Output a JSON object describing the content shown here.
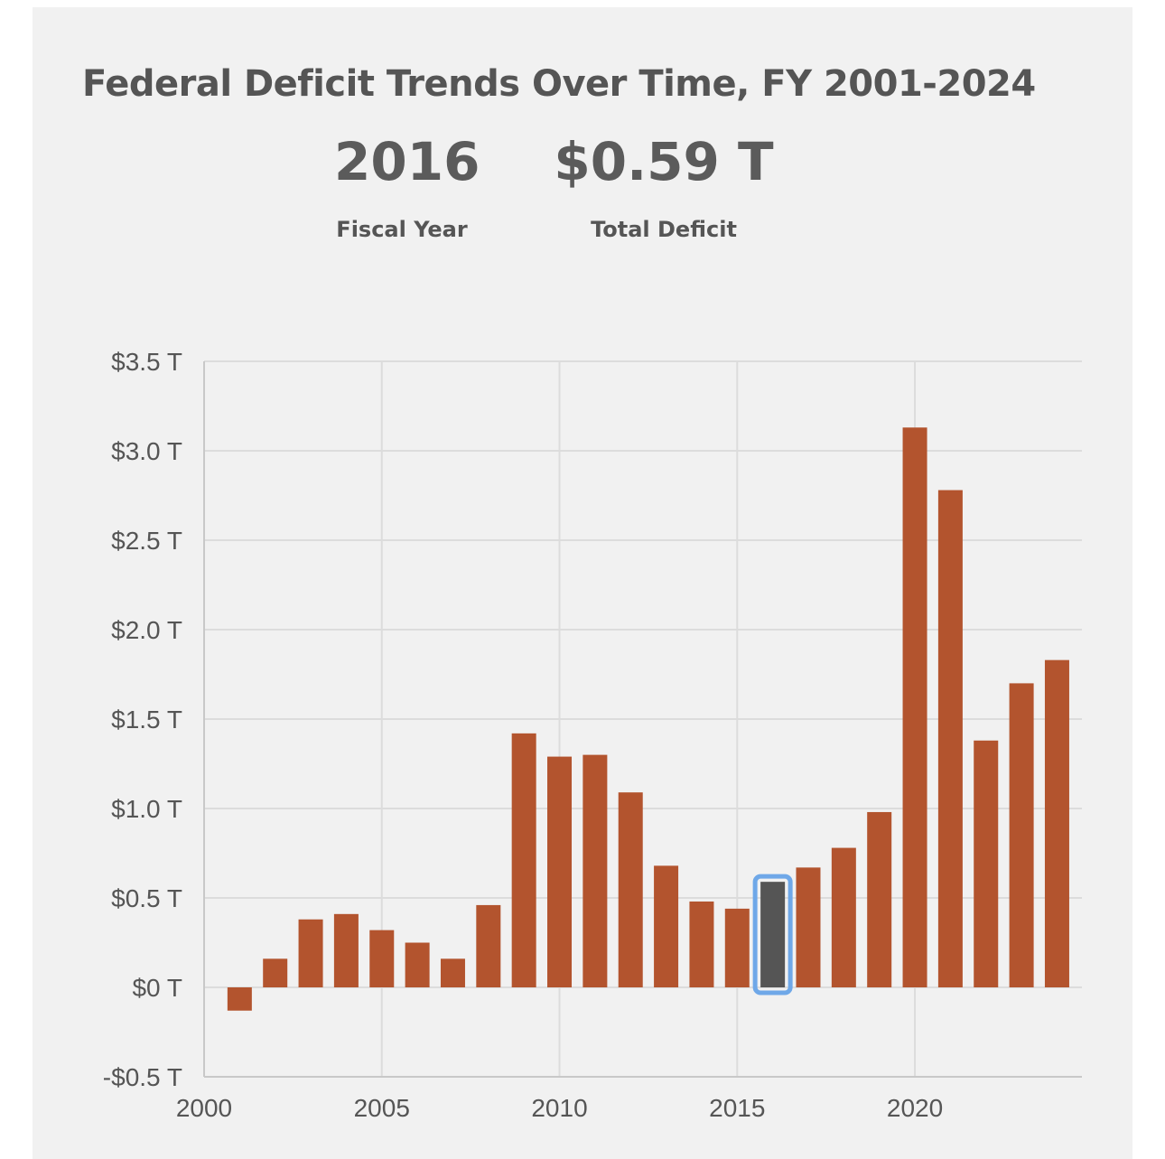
{
  "chart_data": {
    "type": "bar",
    "title": "Federal Deficit Trends Over Time, FY 2001-2024",
    "selected": {
      "year": "2016",
      "year_label": "Fiscal Year",
      "value": "$0.59 T",
      "value_label": "Total Deficit"
    },
    "x": [
      2001,
      2002,
      2003,
      2004,
      2005,
      2006,
      2007,
      2008,
      2009,
      2010,
      2011,
      2012,
      2013,
      2014,
      2015,
      2016,
      2017,
      2018,
      2019,
      2020,
      2021,
      2022,
      2023,
      2024
    ],
    "values": [
      -0.13,
      0.16,
      0.38,
      0.41,
      0.32,
      0.25,
      0.16,
      0.46,
      1.42,
      1.29,
      1.3,
      1.09,
      0.68,
      0.48,
      0.44,
      0.59,
      0.67,
      0.78,
      0.98,
      3.13,
      2.78,
      1.38,
      1.7,
      1.83
    ],
    "highlight_index": 15,
    "ylim": [
      -0.5,
      3.5
    ],
    "y_ticks": [
      -0.5,
      0,
      0.5,
      1.0,
      1.5,
      2.0,
      2.5,
      3.0,
      3.5
    ],
    "y_tick_labels": [
      "-$0.5 T",
      "$0 T",
      "$0.5 T",
      "$1.0 T",
      "$1.5 T",
      "$2.0 T",
      "$2.5 T",
      "$3.0 T",
      "$3.5 T"
    ],
    "x_ticks": [
      2000,
      2005,
      2010,
      2015,
      2020
    ],
    "x_tick_labels": [
      "2000",
      "2005",
      "2010",
      "2015",
      "2020"
    ],
    "grid": true,
    "colors": {
      "bar": "#b3542e",
      "highlight": "#555555",
      "highlight_outline": "#6fa8e8",
      "grid": "#dcdcdc"
    }
  }
}
